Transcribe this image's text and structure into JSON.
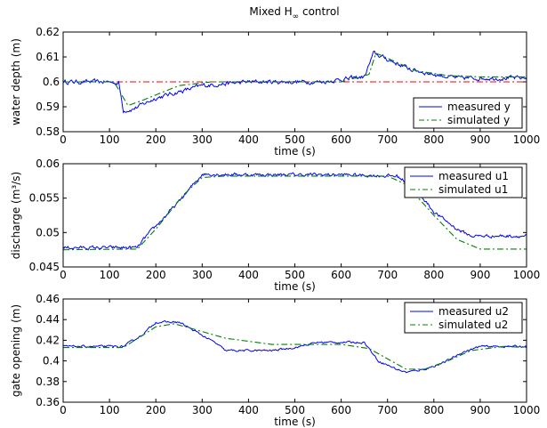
{
  "figure": {
    "title_main": "Mixed H",
    "title_sub": "∞",
    "title_rest": " control"
  },
  "chart_data": [
    {
      "type": "line",
      "xlabel": "time (s)",
      "ylabel": "water depth (m)",
      "xlim": [
        0,
        1000
      ],
      "ylim": [
        0.58,
        0.62
      ],
      "xticks": [
        "0",
        "100",
        "200",
        "300",
        "400",
        "500",
        "600",
        "700",
        "800",
        "900",
        "1000"
      ],
      "yticks": [
        "0.58",
        "0.59",
        "0.6",
        "0.61",
        "0.62"
      ],
      "legend_position": "bottom-right",
      "reference": {
        "y": 0.6,
        "color": "#ff0000",
        "style": "dash-dot"
      },
      "series": [
        {
          "name": "measured y",
          "color": "#0000ff",
          "style": "solid",
          "noise": 0.0007,
          "points": [
            [
              0,
              0.6
            ],
            [
              100,
              0.6
            ],
            [
              120,
              0.5995
            ],
            [
              130,
              0.5885
            ],
            [
              150,
              0.589
            ],
            [
              200,
              0.5935
            ],
            [
              300,
              0.5985
            ],
            [
              400,
              0.6
            ],
            [
              500,
              0.6
            ],
            [
              560,
              0.6
            ],
            [
              600,
              0.601
            ],
            [
              650,
              0.602
            ],
            [
              670,
              0.6115
            ],
            [
              700,
              0.609
            ],
            [
              750,
              0.605
            ],
            [
              800,
              0.603
            ],
            [
              850,
              0.6015
            ],
            [
              1000,
              0.6015
            ]
          ]
        },
        {
          "name": "simulated y",
          "color": "#008000",
          "style": "dash-dot",
          "points": [
            [
              0,
              0.6
            ],
            [
              110,
              0.6
            ],
            [
              140,
              0.5905
            ],
            [
              170,
              0.5925
            ],
            [
              250,
              0.5985
            ],
            [
              320,
              0.6
            ],
            [
              600,
              0.6
            ],
            [
              660,
              0.603
            ],
            [
              675,
              0.6115
            ],
            [
              700,
              0.6095
            ],
            [
              760,
              0.6045
            ],
            [
              830,
              0.6025
            ],
            [
              900,
              0.602
            ],
            [
              1000,
              0.602
            ]
          ]
        }
      ]
    },
    {
      "type": "line",
      "xlabel": "time (s)",
      "ylabel": "discharge (m³/s)",
      "xlim": [
        0,
        1000
      ],
      "ylim": [
        0.045,
        0.06
      ],
      "xticks": [
        "0",
        "100",
        "200",
        "300",
        "400",
        "500",
        "600",
        "700",
        "800",
        "900",
        "1000"
      ],
      "yticks": [
        "0.045",
        "0.05",
        "0.055",
        "0.06"
      ],
      "legend_position": "top-right",
      "series": [
        {
          "name": "measured u1",
          "color": "#0000ff",
          "style": "solid",
          "noise": 0.0002,
          "points": [
            [
              0,
              0.0478
            ],
            [
              160,
              0.0478
            ],
            [
              180,
              0.0495
            ],
            [
              250,
              0.0545
            ],
            [
              300,
              0.0585
            ],
            [
              400,
              0.0584
            ],
            [
              500,
              0.0584
            ],
            [
              600,
              0.0584
            ],
            [
              720,
              0.0582
            ],
            [
              760,
              0.0565
            ],
            [
              800,
              0.053
            ],
            [
              850,
              0.0505
            ],
            [
              880,
              0.0495
            ],
            [
              1000,
              0.0495
            ]
          ]
        },
        {
          "name": "simulated u1",
          "color": "#008000",
          "style": "dash-dot",
          "points": [
            [
              0,
              0.0475
            ],
            [
              160,
              0.0476
            ],
            [
              200,
              0.0505
            ],
            [
              260,
              0.0555
            ],
            [
              300,
              0.058
            ],
            [
              350,
              0.0582
            ],
            [
              700,
              0.0582
            ],
            [
              740,
              0.057
            ],
            [
              800,
              0.0525
            ],
            [
              850,
              0.049
            ],
            [
              900,
              0.0476
            ],
            [
              1000,
              0.0476
            ]
          ]
        }
      ]
    },
    {
      "type": "line",
      "xlabel": "time (s)",
      "ylabel": "gate opening (m)",
      "xlim": [
        0,
        1000
      ],
      "ylim": [
        0.36,
        0.46
      ],
      "xticks": [
        "0",
        "100",
        "200",
        "300",
        "400",
        "500",
        "600",
        "700",
        "800",
        "900",
        "1000"
      ],
      "yticks": [
        "0.36",
        "0.38",
        "0.4",
        "0.42",
        "0.44",
        "0.46"
      ],
      "legend_position": "top-right",
      "series": [
        {
          "name": "measured u2",
          "color": "#0000ff",
          "style": "solid",
          "noise": 0.0008,
          "points": [
            [
              0,
              0.414
            ],
            [
              130,
              0.414
            ],
            [
              170,
              0.425
            ],
            [
              200,
              0.4375
            ],
            [
              250,
              0.4375
            ],
            [
              280,
              0.43
            ],
            [
              330,
              0.417
            ],
            [
              350,
              0.41
            ],
            [
              450,
              0.41
            ],
            [
              500,
              0.413
            ],
            [
              550,
              0.418
            ],
            [
              650,
              0.418
            ],
            [
              680,
              0.4
            ],
            [
              720,
              0.392
            ],
            [
              740,
              0.389
            ],
            [
              780,
              0.392
            ],
            [
              820,
              0.398
            ],
            [
              860,
              0.408
            ],
            [
              900,
              0.414
            ],
            [
              1000,
              0.414
            ]
          ]
        },
        {
          "name": "simulated u2",
          "color": "#008000",
          "style": "dash-dot",
          "points": [
            [
              0,
              0.413
            ],
            [
              130,
              0.413
            ],
            [
              200,
              0.433
            ],
            [
              240,
              0.436
            ],
            [
              280,
              0.431
            ],
            [
              350,
              0.422
            ],
            [
              450,
              0.416
            ],
            [
              600,
              0.416
            ],
            [
              660,
              0.412
            ],
            [
              700,
              0.402
            ],
            [
              740,
              0.392
            ],
            [
              780,
              0.392
            ],
            [
              830,
              0.4
            ],
            [
              880,
              0.41
            ],
            [
              950,
              0.414
            ],
            [
              1000,
              0.413
            ]
          ]
        }
      ]
    }
  ]
}
